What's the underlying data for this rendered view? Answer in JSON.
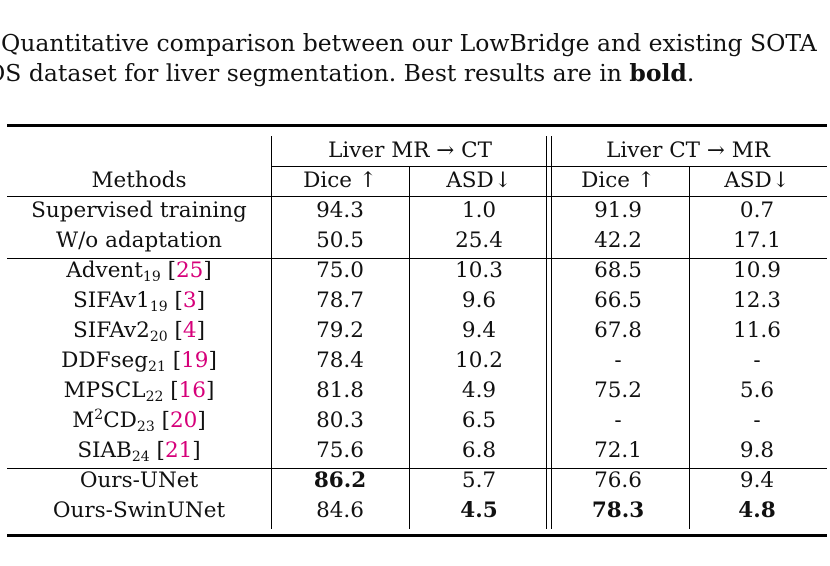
{
  "caption": {
    "line1": ". Quantitative comparison between our LowBridge and existing SOTA",
    "line2_prefix": "OS dataset for liver segmentation. Best results are in ",
    "line2_bold": "bold",
    "line2_suffix": "."
  },
  "table": {
    "group_headers": [
      "Liver MR → CT",
      "Liver CT → MR"
    ],
    "col_methods": "Methods",
    "col_dice": "Dice ↑",
    "col_asd": "ASD↓",
    "rows": [
      {
        "name": "Supervised training",
        "sub": "",
        "sup": "",
        "name_after": "",
        "cite": "",
        "v": [
          "94.3",
          "1.0",
          "91.9",
          "0.7"
        ]
      },
      {
        "name": "W/o adaptation",
        "sub": "",
        "sup": "",
        "name_after": "",
        "cite": "",
        "v": [
          "50.5",
          "25.4",
          "42.2",
          "17.1"
        ]
      },
      {
        "name": "Advent",
        "sub": "19",
        "sup": "",
        "name_after": "",
        "cite": "25",
        "v": [
          "75.0",
          "10.3",
          "68.5",
          "10.9"
        ]
      },
      {
        "name": "SIFAv1",
        "sub": "19",
        "sup": "",
        "name_after": "",
        "cite": "3",
        "v": [
          "78.7",
          "9.6",
          "66.5",
          "12.3"
        ]
      },
      {
        "name": "SIFAv2",
        "sub": "20",
        "sup": "",
        "name_after": "",
        "cite": "4",
        "v": [
          "79.2",
          "9.4",
          "67.8",
          "11.6"
        ]
      },
      {
        "name": "DDFseg",
        "sub": "21",
        "sup": "",
        "name_after": "",
        "cite": "19",
        "v": [
          "78.4",
          "10.2",
          "-",
          "-"
        ]
      },
      {
        "name": "MPSCL",
        "sub": "22",
        "sup": "",
        "name_after": "",
        "cite": "16",
        "v": [
          "81.8",
          "4.9",
          "75.2",
          "5.6"
        ]
      },
      {
        "name": "M",
        "sub": "23",
        "sup": "2",
        "name_after": "CD",
        "cite": "20",
        "v": [
          "80.3",
          "6.5",
          "-",
          "-"
        ]
      },
      {
        "name": "SIAB",
        "sub": "24",
        "sup": "",
        "name_after": "",
        "cite": "21",
        "v": [
          "75.6",
          "6.8",
          "72.1",
          "9.8"
        ]
      },
      {
        "name": "Ours-UNet",
        "sub": "",
        "sup": "",
        "name_after": "",
        "cite": "",
        "v": [
          "86.2",
          "5.7",
          "76.6",
          "9.4"
        ],
        "bold": [
          true,
          false,
          false,
          false
        ]
      },
      {
        "name": "Ours-SwinUNet",
        "sub": "",
        "sup": "",
        "name_after": "",
        "cite": "",
        "v": [
          "84.6",
          "4.5",
          "78.3",
          "4.8"
        ],
        "bold": [
          false,
          true,
          true,
          true
        ]
      }
    ]
  }
}
